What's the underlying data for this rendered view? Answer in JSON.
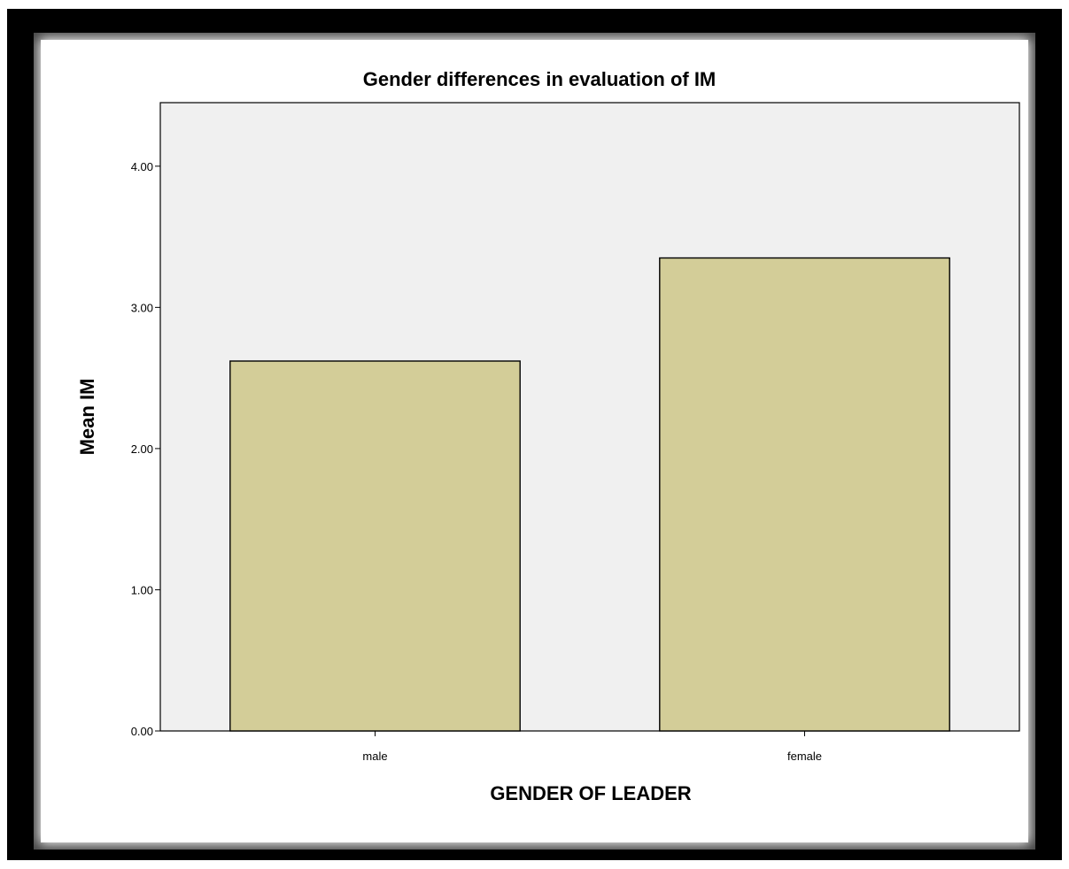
{
  "chart_data": {
    "type": "bar",
    "title": "Gender differences in evaluation of IM",
    "xlabel": "GENDER OF LEADER",
    "ylabel": "Mean IM",
    "categories": [
      "male",
      "female"
    ],
    "values": [
      2.62,
      3.35
    ],
    "ylim": [
      0,
      4.45
    ],
    "yticks": [
      0,
      1,
      2,
      3,
      4
    ],
    "ytick_labels": [
      "0.00",
      "1.00",
      "2.00",
      "3.00",
      "4.00"
    ],
    "grid": false,
    "legend": "none",
    "colors": {
      "bar_fill": "#d3cd98",
      "bar_stroke": "#000000",
      "plot_bg": "#f0f0f0",
      "frame": "#000000"
    }
  }
}
